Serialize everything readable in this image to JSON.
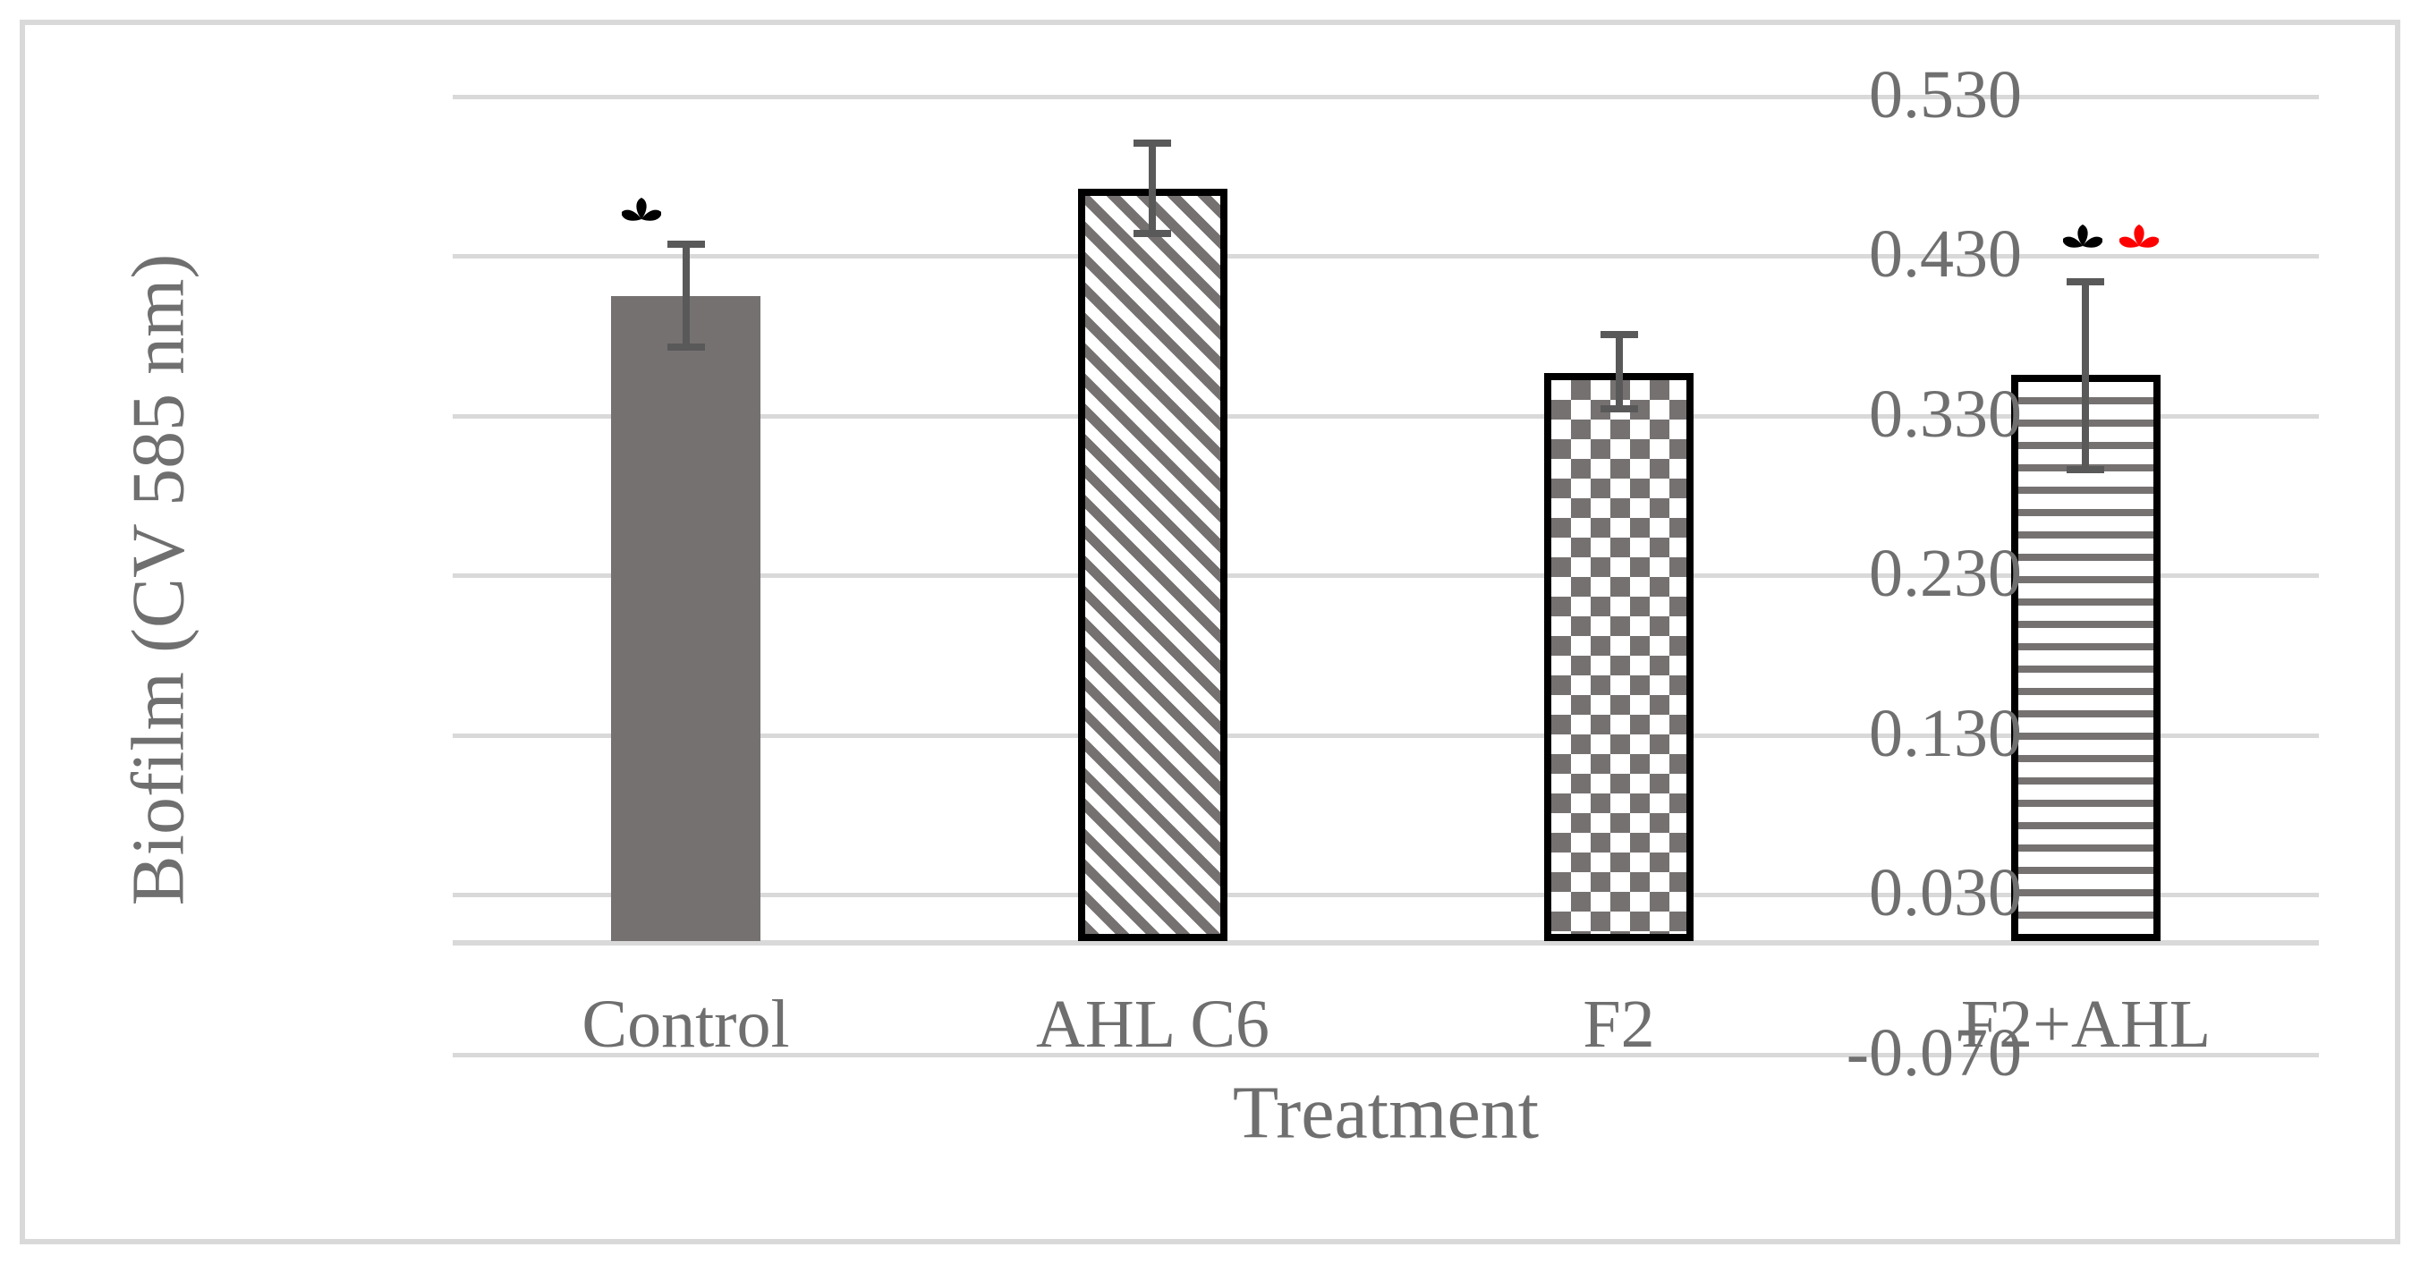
{
  "colors": {
    "bar_fill_gray": "#767171",
    "bar_outline": "#000000",
    "error_bar": "#595959",
    "gridline": "#d9d9d9",
    "frame_border": "#d9d9d9",
    "axis_text": "#6f6f6f",
    "marker_black": "#000000",
    "marker_red": "#ff0000",
    "background": "#ffffff"
  },
  "chart_data": {
    "type": "bar",
    "title": "",
    "xlabel": "Treatment",
    "ylabel": "Biofilm (CV 585 nm)",
    "categories": [
      "Control",
      "AHL C6",
      "F2",
      "F2+AHL"
    ],
    "values": [
      0.405,
      0.472,
      0.357,
      0.356
    ],
    "error_plus": [
      0.035,
      0.031,
      0.026,
      0.06
    ],
    "error_minus": [
      0.034,
      0.03,
      0.025,
      0.062
    ],
    "bar_patterns": [
      "solid",
      "diagonal-stripes",
      "checkerboard",
      "horizontal-stripes"
    ],
    "y_tick_labels": [
      "0.530",
      "0.430",
      "0.330",
      "0.230",
      "0.130",
      "0.030",
      "-0.070"
    ],
    "y_tick_values": [
      0.53,
      0.43,
      0.33,
      0.23,
      0.13,
      0.03,
      -0.07
    ],
    "ylim": [
      -0.07,
      0.58
    ],
    "baseline": 0,
    "grid": "horizontal",
    "legend": "none",
    "significance_markers": [
      {
        "category": "Control",
        "gap": 38,
        "items": [
          {
            "name": "black-asterisk-marker",
            "color": "#000000",
            "dx": -50
          }
        ]
      },
      {
        "category": "F2+AHL",
        "gap": 50,
        "items": [
          {
            "name": "black-asterisk-marker",
            "color": "#000000",
            "dx": -3
          },
          {
            "name": "red-asterisk-marker",
            "color": "#ff0000",
            "dx": 60
          }
        ]
      }
    ]
  }
}
